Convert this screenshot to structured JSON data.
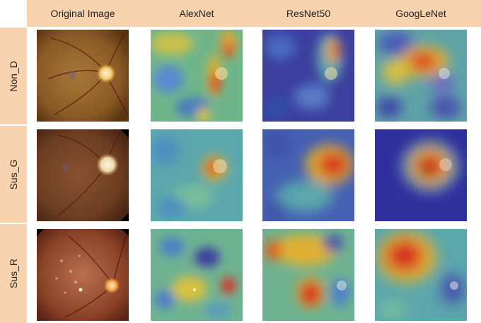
{
  "columns": [
    {
      "label": "Original Image",
      "type": "fundus"
    },
    {
      "label": "AlexNet",
      "type": "heatmap"
    },
    {
      "label": "ResNet50",
      "type": "heatmap"
    },
    {
      "label": "GoogLeNet",
      "type": "heatmap"
    }
  ],
  "rows": [
    {
      "label": "Non_D"
    },
    {
      "label": "Sus_G"
    },
    {
      "label": "Sus_R"
    }
  ],
  "colors": {
    "header_bg": "#f7d3ad",
    "heatmap_low": "#2b2ea8",
    "heatmap_high": "#d81f1f"
  }
}
